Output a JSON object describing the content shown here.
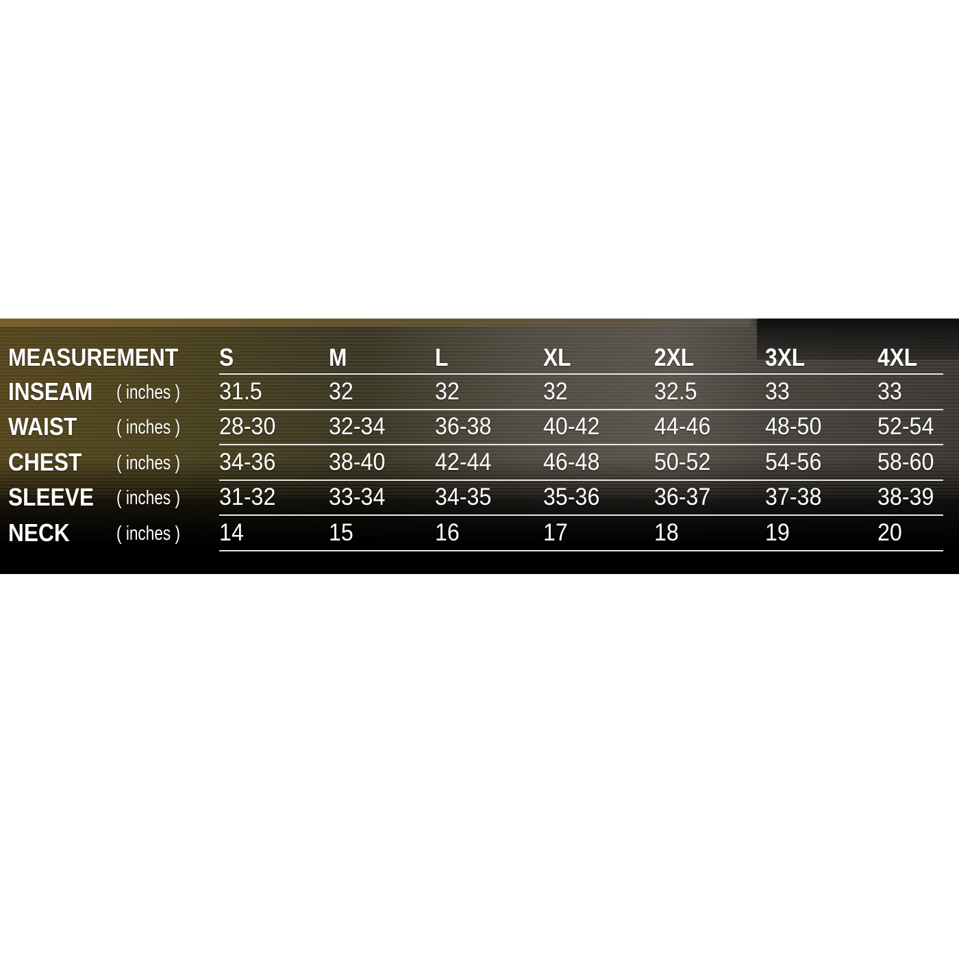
{
  "header": {
    "measurement_label": "MEASUREMENT",
    "sizes": [
      "S",
      "M",
      "L",
      "XL",
      "2XL",
      "3XL",
      "4XL"
    ]
  },
  "rows": [
    {
      "label": "INSEAM",
      "unit": "( inches )",
      "values": [
        "31.5",
        "32",
        "32",
        "32",
        "32.5",
        "33",
        "33"
      ]
    },
    {
      "label": "WAIST",
      "unit": "( inches )",
      "values": [
        "28-30",
        "32-34",
        "36-38",
        "40-42",
        "44-46",
        "48-50",
        "52-54"
      ]
    },
    {
      "label": "CHEST",
      "unit": "( inches )",
      "values": [
        "34-36",
        "38-40",
        "42-44",
        "46-48",
        "50-52",
        "54-56",
        "58-60"
      ]
    },
    {
      "label": "SLEEVE",
      "unit": "( inches )",
      "values": [
        "31-32",
        "33-34",
        "34-35",
        "35-36",
        "36-37",
        "37-38",
        "38-39"
      ]
    },
    {
      "label": "NECK",
      "unit": "( inches )",
      "values": [
        "14",
        "15",
        "16",
        "17",
        "18",
        "19",
        "20"
      ]
    }
  ],
  "colors": {
    "text": "#ffffff",
    "rule": "#e8e8e8",
    "background_bottom": "#000000"
  }
}
